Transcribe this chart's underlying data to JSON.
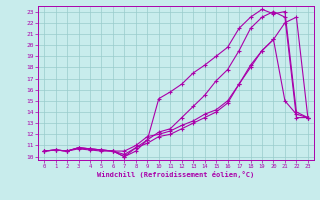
{
  "xlabel": "Windchill (Refroidissement éolien,°C)",
  "bg_color": "#c8ecec",
  "line_color": "#aa00aa",
  "grid_color": "#99cccc",
  "xlim": [
    0,
    23
  ],
  "ylim": [
    10,
    23
  ],
  "xticks": [
    0,
    1,
    2,
    3,
    4,
    5,
    6,
    7,
    8,
    9,
    10,
    11,
    12,
    13,
    14,
    15,
    16,
    17,
    18,
    19,
    20,
    21,
    22,
    23
  ],
  "yticks": [
    10,
    11,
    12,
    13,
    14,
    15,
    16,
    17,
    18,
    19,
    20,
    21,
    22,
    23
  ],
  "line1_x": [
    0,
    1,
    2,
    3,
    4,
    5,
    6,
    7,
    8,
    9,
    10,
    11,
    12,
    13,
    14,
    15,
    16,
    17,
    18,
    19,
    20,
    21,
    22,
    23
  ],
  "line1_y": [
    10.5,
    10.6,
    10.5,
    10.8,
    10.7,
    10.6,
    10.5,
    10.5,
    11.0,
    11.8,
    12.0,
    12.3,
    12.8,
    13.2,
    13.8,
    14.2,
    15.0,
    16.5,
    18.0,
    19.5,
    20.5,
    15.0,
    13.8,
    13.5
  ],
  "line2_x": [
    0,
    1,
    2,
    3,
    4,
    5,
    6,
    7,
    8,
    9,
    10,
    11,
    12,
    13,
    14,
    15,
    16,
    17,
    18,
    19,
    20,
    21,
    22,
    23
  ],
  "line2_y": [
    10.5,
    10.6,
    10.5,
    10.8,
    10.7,
    10.6,
    10.5,
    10.0,
    10.8,
    11.5,
    15.2,
    15.8,
    16.5,
    17.5,
    18.2,
    19.0,
    19.8,
    21.5,
    22.5,
    23.2,
    22.8,
    23.0,
    14.0,
    13.5
  ],
  "line3_x": [
    0,
    1,
    2,
    3,
    4,
    5,
    6,
    7,
    8,
    9,
    10,
    11,
    12,
    13,
    14,
    15,
    16,
    17,
    18,
    19,
    20,
    21,
    22,
    23
  ],
  "line3_y": [
    10.5,
    10.6,
    10.5,
    10.8,
    10.7,
    10.6,
    10.5,
    10.0,
    10.5,
    11.5,
    12.2,
    12.5,
    13.5,
    14.5,
    15.5,
    16.8,
    17.8,
    19.5,
    21.5,
    22.5,
    23.0,
    22.5,
    13.5,
    13.5
  ],
  "line4_x": [
    0,
    1,
    2,
    3,
    4,
    5,
    6,
    7,
    8,
    9,
    10,
    11,
    12,
    13,
    14,
    15,
    16,
    17,
    18,
    19,
    20,
    21,
    22,
    23
  ],
  "line4_y": [
    10.5,
    10.6,
    10.5,
    10.7,
    10.6,
    10.5,
    10.5,
    10.2,
    10.8,
    11.2,
    11.8,
    12.0,
    12.5,
    13.0,
    13.5,
    14.0,
    14.8,
    16.5,
    18.2,
    19.5,
    20.5,
    22.0,
    22.5,
    13.5
  ]
}
